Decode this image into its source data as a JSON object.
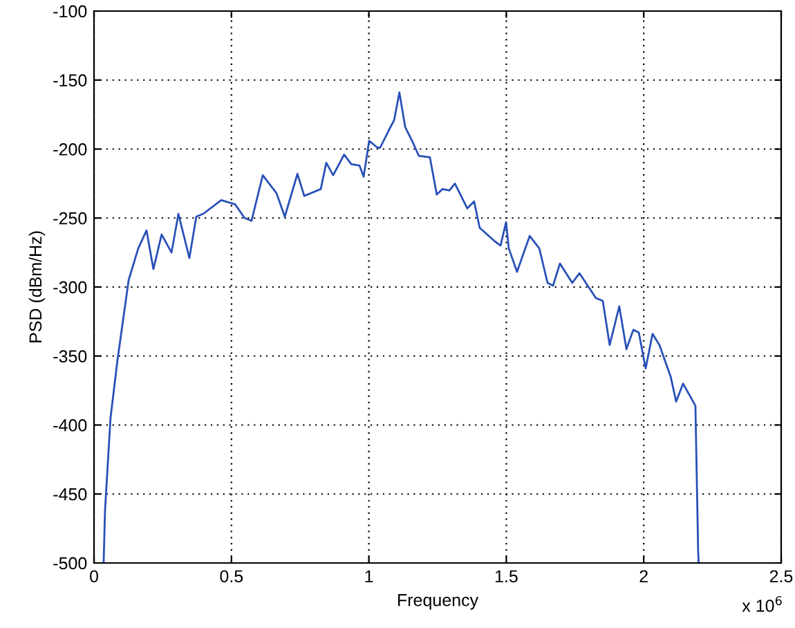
{
  "chart_data": {
    "type": "line",
    "xlabel": "Frequency",
    "ylabel": "PSD (dBm/Hz)",
    "annotations": [
      "x 10$^{6}$"
    ],
    "xlim": [
      0,
      2.5
    ],
    "xticks": [
      0,
      0.5,
      1,
      1.5,
      2,
      2.5
    ],
    "ylim": [
      -500,
      -100
    ],
    "yticks": [
      -500,
      -450,
      -400,
      -350,
      -300,
      -250,
      -200,
      -150,
      -100
    ],
    "grid": true,
    "line_style": "solid",
    "marker": "none",
    "series": [
      {
        "color": "#2850b8",
        "x": [
          0.035,
          0.04,
          0.06,
          0.086,
          0.126,
          0.161,
          0.191,
          0.216,
          0.246,
          0.282,
          0.307,
          0.347,
          0.372,
          0.397,
          0.463,
          0.513,
          0.548,
          0.573,
          0.614,
          0.664,
          0.694,
          0.74,
          0.765,
          0.825,
          0.845,
          0.87,
          0.91,
          0.936,
          0.966,
          0.981,
          1.001,
          1.031,
          1.041,
          1.076,
          1.092,
          1.111,
          1.132,
          1.157,
          1.182,
          1.222,
          1.247,
          1.268,
          1.293,
          1.313,
          1.358,
          1.383,
          1.403,
          1.459,
          1.479,
          1.499,
          1.509,
          1.539,
          1.585,
          1.62,
          1.65,
          1.67,
          1.695,
          1.74,
          1.766,
          1.826,
          1.851,
          1.876,
          1.911,
          1.937,
          1.962,
          1.982,
          2.007,
          2.032,
          2.057,
          2.098,
          2.118,
          2.143,
          2.188,
          2.193,
          2.198,
          2.2
        ],
        "values": [
          -500,
          -462,
          -395,
          -352,
          -295,
          -272,
          -259,
          -287,
          -262,
          -275,
          -247,
          -279,
          -249,
          -247,
          -237,
          -240,
          -250,
          -252,
          -219,
          -232,
          -249,
          -218,
          -234,
          -229,
          -210,
          -219,
          -204,
          -211,
          -212,
          -220,
          -194,
          -199,
          -199,
          -185,
          -179,
          -159,
          -184,
          -194,
          -205,
          -206,
          -233,
          -229,
          -230,
          -225,
          -243,
          -238,
          -257,
          -267,
          -270,
          -253,
          -272,
          -289,
          -263,
          -272,
          -297,
          -299,
          -283,
          -297,
          -290,
          -308,
          -310,
          -342,
          -314,
          -345,
          -331,
          -333,
          -359,
          -334,
          -342,
          -365,
          -383,
          -370,
          -386,
          -439,
          -492,
          -500
        ]
      }
    ]
  }
}
